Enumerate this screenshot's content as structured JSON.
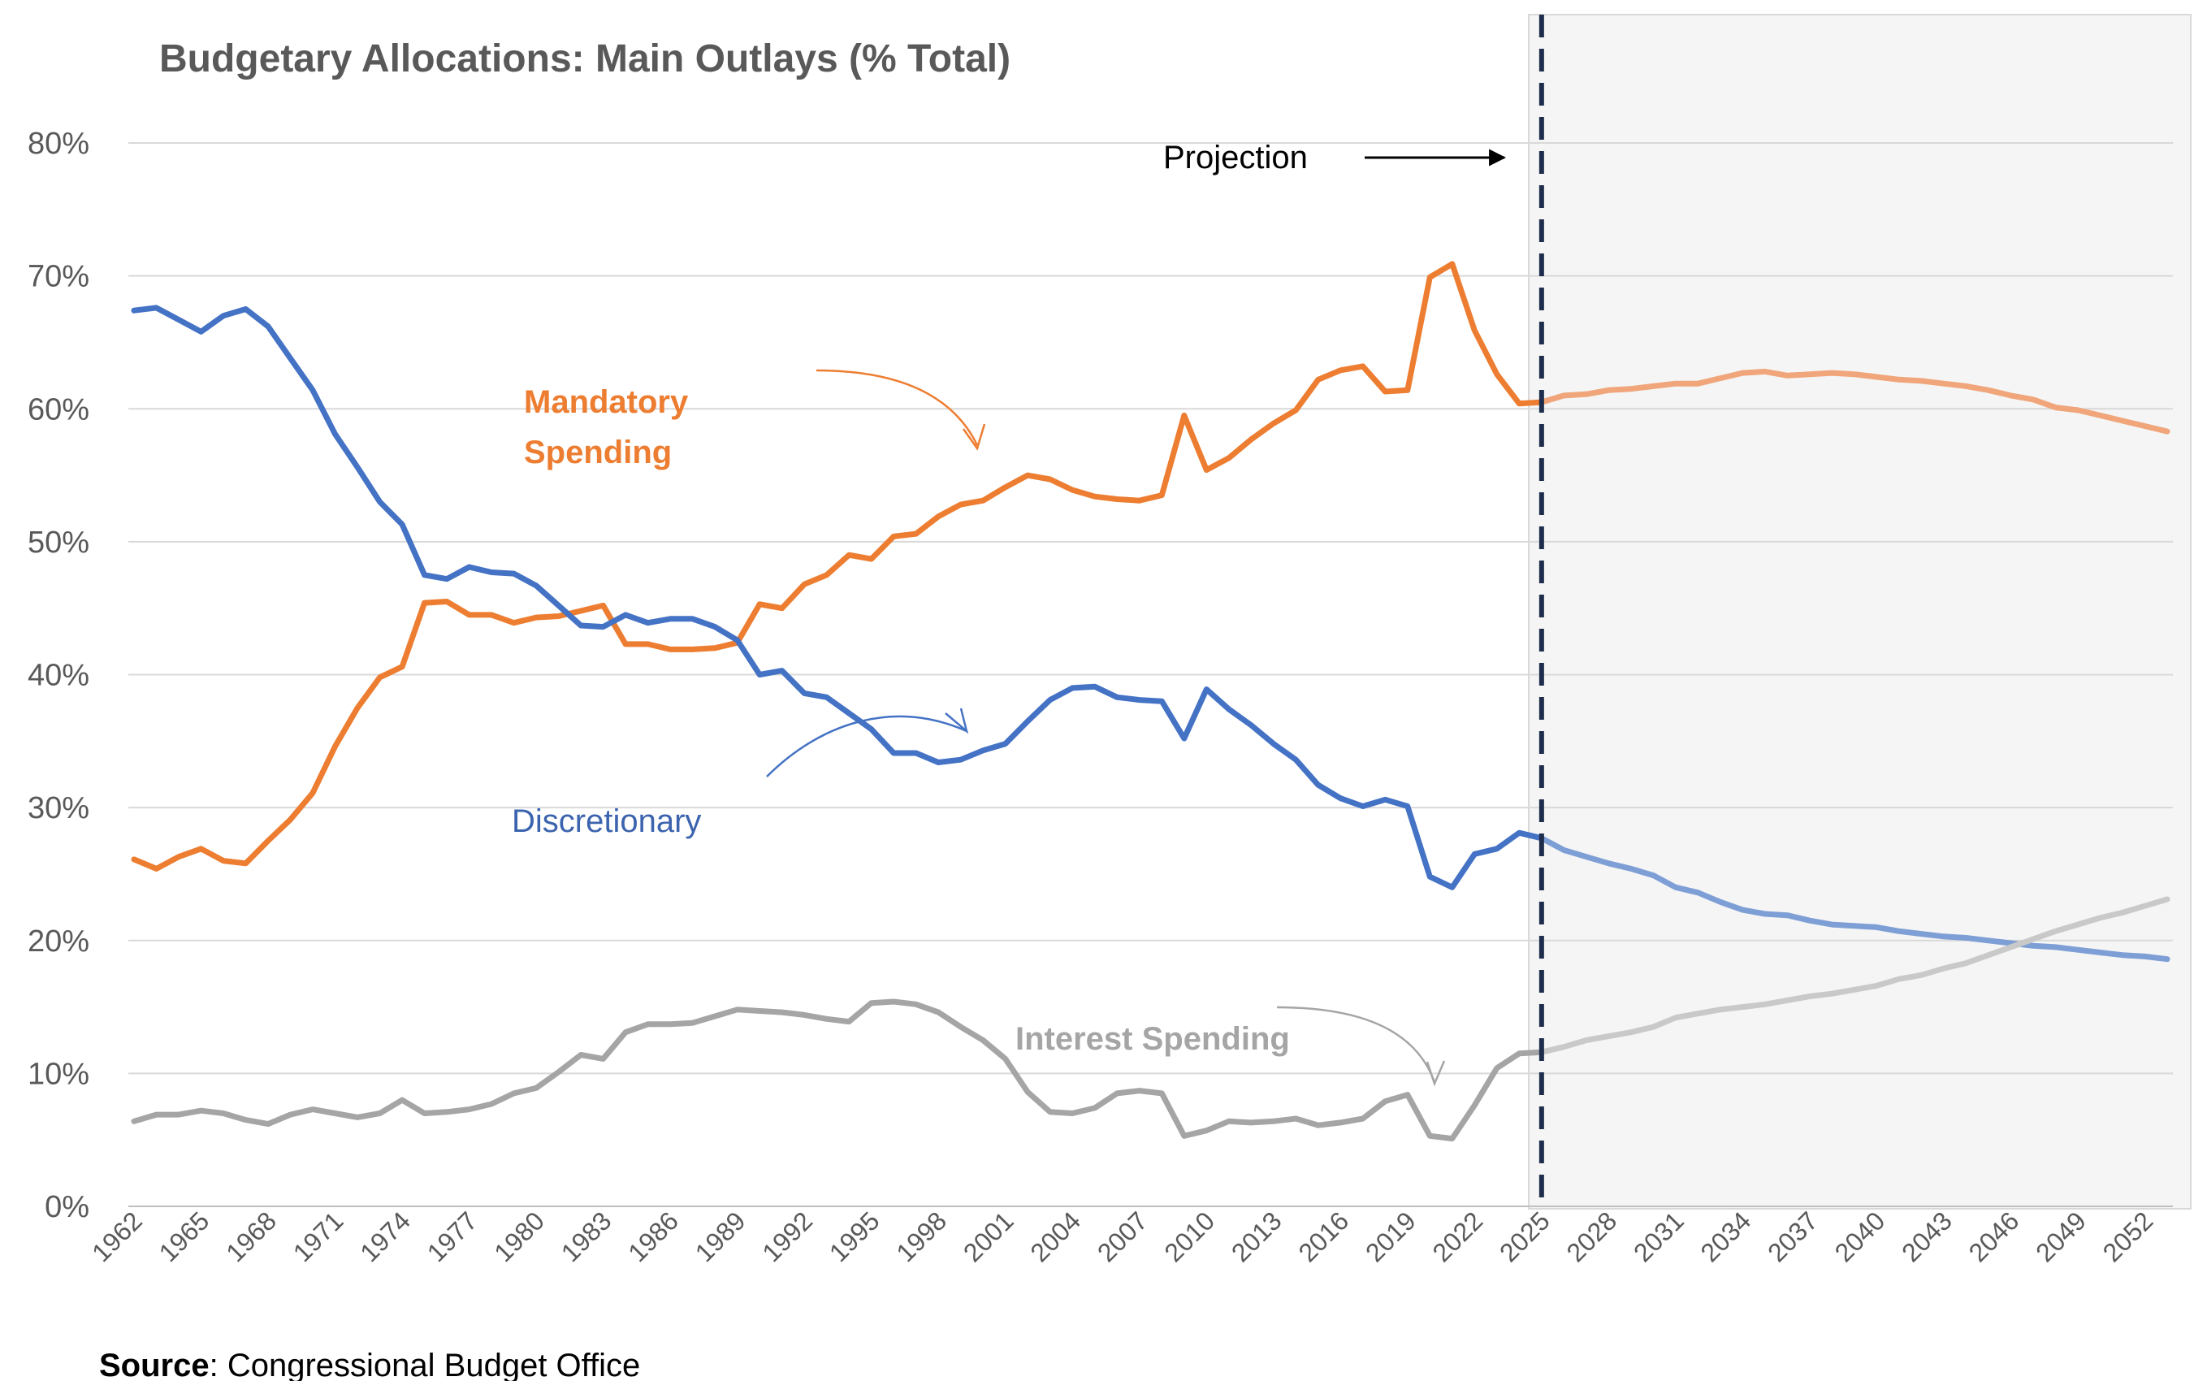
{
  "chart_data": {
    "type": "line",
    "title": "Budgetary Allocations: Main Outlays (% Total)",
    "xlabel": "",
    "ylabel": "",
    "ylim": [
      0,
      80
    ],
    "y_ticks": [
      "0%",
      "10%",
      "20%",
      "30%",
      "40%",
      "50%",
      "60%",
      "70%",
      "80%"
    ],
    "x_range": [
      1962,
      2053
    ],
    "x_tick_years": [
      1962,
      1965,
      1968,
      1971,
      1974,
      1977,
      1980,
      1983,
      1986,
      1989,
      1992,
      1995,
      1998,
      2001,
      2004,
      2007,
      2010,
      2013,
      2016,
      2019,
      2022,
      2025,
      2028,
      2031,
      2034,
      2037,
      2040,
      2043,
      2046,
      2049,
      2052
    ],
    "projection_start": 2025,
    "grid": "horizontal",
    "legend": "none",
    "series": [
      {
        "key": "mandatory",
        "color": "#ED7D31",
        "projection_color": "#F0A67A",
        "points": [
          [
            1962,
            26.1
          ],
          [
            1963,
            25.4
          ],
          [
            1964,
            26.3
          ],
          [
            1965,
            26.9
          ],
          [
            1966,
            26.0
          ],
          [
            1967,
            25.8
          ],
          [
            1968,
            27.5
          ],
          [
            1969,
            29.1
          ],
          [
            1970,
            31.1
          ],
          [
            1971,
            34.6
          ],
          [
            1972,
            37.5
          ],
          [
            1973,
            39.8
          ],
          [
            1974,
            40.6
          ],
          [
            1975,
            45.4
          ],
          [
            1976,
            45.5
          ],
          [
            1977,
            44.5
          ],
          [
            1978,
            44.5
          ],
          [
            1979,
            43.9
          ],
          [
            1980,
            44.3
          ],
          [
            1981,
            44.4
          ],
          [
            1982,
            44.8
          ],
          [
            1983,
            45.2
          ],
          [
            1984,
            42.3
          ],
          [
            1985,
            42.3
          ],
          [
            1986,
            41.9
          ],
          [
            1987,
            41.9
          ],
          [
            1988,
            42.0
          ],
          [
            1989,
            42.4
          ],
          [
            1990,
            45.3
          ],
          [
            1991,
            45.0
          ],
          [
            1992,
            46.8
          ],
          [
            1993,
            47.5
          ],
          [
            1994,
            49.0
          ],
          [
            1995,
            48.7
          ],
          [
            1996,
            50.4
          ],
          [
            1997,
            50.6
          ],
          [
            1998,
            51.9
          ],
          [
            1999,
            52.8
          ],
          [
            2000,
            53.1
          ],
          [
            2001,
            54.1
          ],
          [
            2002,
            55.0
          ],
          [
            2003,
            54.7
          ],
          [
            2004,
            53.9
          ],
          [
            2005,
            53.4
          ],
          [
            2006,
            53.2
          ],
          [
            2007,
            53.1
          ],
          [
            2008,
            53.5
          ],
          [
            2009,
            59.5
          ],
          [
            2010,
            55.4
          ],
          [
            2011,
            56.3
          ],
          [
            2012,
            57.7
          ],
          [
            2013,
            58.9
          ],
          [
            2014,
            59.9
          ],
          [
            2015,
            62.2
          ],
          [
            2016,
            62.9
          ],
          [
            2017,
            63.2
          ],
          [
            2018,
            61.3
          ],
          [
            2019,
            61.4
          ],
          [
            2020,
            69.9
          ],
          [
            2021,
            70.9
          ],
          [
            2022,
            65.9
          ],
          [
            2023,
            62.6
          ],
          [
            2024,
            60.4
          ],
          [
            2025,
            60.5
          ],
          [
            2026,
            61.0
          ],
          [
            2027,
            61.1
          ],
          [
            2028,
            61.4
          ],
          [
            2029,
            61.5
          ],
          [
            2030,
            61.7
          ],
          [
            2031,
            61.9
          ],
          [
            2032,
            61.9
          ],
          [
            2033,
            62.3
          ],
          [
            2034,
            62.7
          ],
          [
            2035,
            62.8
          ],
          [
            2036,
            62.5
          ],
          [
            2037,
            62.6
          ],
          [
            2038,
            62.7
          ],
          [
            2039,
            62.6
          ],
          [
            2040,
            62.4
          ],
          [
            2041,
            62.2
          ],
          [
            2042,
            62.1
          ],
          [
            2043,
            61.9
          ],
          [
            2044,
            61.7
          ],
          [
            2045,
            61.4
          ],
          [
            2046,
            61.0
          ],
          [
            2047,
            60.7
          ],
          [
            2048,
            60.1
          ],
          [
            2049,
            59.9
          ],
          [
            2050,
            59.5
          ],
          [
            2051,
            59.1
          ],
          [
            2052,
            58.7
          ],
          [
            2053,
            58.3
          ]
        ]
      },
      {
        "key": "discretionary",
        "color": "#4472C4",
        "projection_color": "#7E9FD6",
        "points": [
          [
            1962,
            67.4
          ],
          [
            1963,
            67.6
          ],
          [
            1964,
            66.7
          ],
          [
            1965,
            65.8
          ],
          [
            1966,
            67.0
          ],
          [
            1967,
            67.5
          ],
          [
            1968,
            66.2
          ],
          [
            1969,
            63.8
          ],
          [
            1970,
            61.4
          ],
          [
            1971,
            58.1
          ],
          [
            1972,
            55.6
          ],
          [
            1973,
            53.0
          ],
          [
            1974,
            51.3
          ],
          [
            1975,
            47.5
          ],
          [
            1976,
            47.2
          ],
          [
            1977,
            48.1
          ],
          [
            1978,
            47.7
          ],
          [
            1979,
            47.6
          ],
          [
            1980,
            46.7
          ],
          [
            1981,
            45.2
          ],
          [
            1982,
            43.7
          ],
          [
            1983,
            43.6
          ],
          [
            1984,
            44.5
          ],
          [
            1985,
            43.9
          ],
          [
            1986,
            44.2
          ],
          [
            1987,
            44.2
          ],
          [
            1988,
            43.6
          ],
          [
            1989,
            42.6
          ],
          [
            1990,
            40.0
          ],
          [
            1991,
            40.3
          ],
          [
            1992,
            38.6
          ],
          [
            1993,
            38.3
          ],
          [
            1994,
            37.1
          ],
          [
            1995,
            35.9
          ],
          [
            1996,
            34.1
          ],
          [
            1997,
            34.1
          ],
          [
            1998,
            33.4
          ],
          [
            1999,
            33.6
          ],
          [
            2000,
            34.3
          ],
          [
            2001,
            34.8
          ],
          [
            2002,
            36.5
          ],
          [
            2003,
            38.1
          ],
          [
            2004,
            39.0
          ],
          [
            2005,
            39.1
          ],
          [
            2006,
            38.3
          ],
          [
            2007,
            38.1
          ],
          [
            2008,
            38.0
          ],
          [
            2009,
            35.2
          ],
          [
            2010,
            38.9
          ],
          [
            2011,
            37.4
          ],
          [
            2012,
            36.2
          ],
          [
            2013,
            34.8
          ],
          [
            2014,
            33.6
          ],
          [
            2015,
            31.7
          ],
          [
            2016,
            30.7
          ],
          [
            2017,
            30.1
          ],
          [
            2018,
            30.6
          ],
          [
            2019,
            30.1
          ],
          [
            2020,
            24.8
          ],
          [
            2021,
            24.0
          ],
          [
            2022,
            26.5
          ],
          [
            2023,
            26.9
          ],
          [
            2024,
            28.1
          ],
          [
            2025,
            27.7
          ],
          [
            2026,
            26.8
          ],
          [
            2027,
            26.3
          ],
          [
            2028,
            25.8
          ],
          [
            2029,
            25.4
          ],
          [
            2030,
            24.9
          ],
          [
            2031,
            24.0
          ],
          [
            2032,
            23.6
          ],
          [
            2033,
            22.9
          ],
          [
            2034,
            22.3
          ],
          [
            2035,
            22.0
          ],
          [
            2036,
            21.9
          ],
          [
            2037,
            21.5
          ],
          [
            2038,
            21.2
          ],
          [
            2039,
            21.1
          ],
          [
            2040,
            21.0
          ],
          [
            2041,
            20.7
          ],
          [
            2042,
            20.5
          ],
          [
            2043,
            20.3
          ],
          [
            2044,
            20.2
          ],
          [
            2045,
            20.0
          ],
          [
            2046,
            19.8
          ],
          [
            2047,
            19.6
          ],
          [
            2048,
            19.5
          ],
          [
            2049,
            19.3
          ],
          [
            2050,
            19.1
          ],
          [
            2051,
            18.9
          ],
          [
            2052,
            18.8
          ],
          [
            2053,
            18.6
          ]
        ]
      },
      {
        "key": "interest",
        "color": "#A5A5A5",
        "projection_color": "#C9C9C9",
        "points": [
          [
            1962,
            6.4
          ],
          [
            1963,
            6.9
          ],
          [
            1964,
            6.9
          ],
          [
            1965,
            7.2
          ],
          [
            1966,
            7.0
          ],
          [
            1967,
            6.5
          ],
          [
            1968,
            6.2
          ],
          [
            1969,
            6.9
          ],
          [
            1970,
            7.3
          ],
          [
            1971,
            7.0
          ],
          [
            1972,
            6.7
          ],
          [
            1973,
            7.0
          ],
          [
            1974,
            8.0
          ],
          [
            1975,
            7.0
          ],
          [
            1976,
            7.1
          ],
          [
            1977,
            7.3
          ],
          [
            1978,
            7.7
          ],
          [
            1979,
            8.5
          ],
          [
            1980,
            8.9
          ],
          [
            1981,
            10.1
          ],
          [
            1982,
            11.4
          ],
          [
            1983,
            11.1
          ],
          [
            1984,
            13.1
          ],
          [
            1985,
            13.7
          ],
          [
            1986,
            13.7
          ],
          [
            1987,
            13.8
          ],
          [
            1988,
            14.3
          ],
          [
            1989,
            14.8
          ],
          [
            1990,
            14.7
          ],
          [
            1991,
            14.6
          ],
          [
            1992,
            14.4
          ],
          [
            1993,
            14.1
          ],
          [
            1994,
            13.9
          ],
          [
            1995,
            15.3
          ],
          [
            1996,
            15.4
          ],
          [
            1997,
            15.2
          ],
          [
            1998,
            14.6
          ],
          [
            1999,
            13.5
          ],
          [
            2000,
            12.5
          ],
          [
            2001,
            11.1
          ],
          [
            2002,
            8.6
          ],
          [
            2003,
            7.1
          ],
          [
            2004,
            7.0
          ],
          [
            2005,
            7.4
          ],
          [
            2006,
            8.5
          ],
          [
            2007,
            8.7
          ],
          [
            2008,
            8.5
          ],
          [
            2009,
            5.3
          ],
          [
            2010,
            5.7
          ],
          [
            2011,
            6.4
          ],
          [
            2012,
            6.3
          ],
          [
            2013,
            6.4
          ],
          [
            2014,
            6.6
          ],
          [
            2015,
            6.1
          ],
          [
            2016,
            6.3
          ],
          [
            2017,
            6.6
          ],
          [
            2018,
            7.9
          ],
          [
            2019,
            8.4
          ],
          [
            2020,
            5.3
          ],
          [
            2021,
            5.1
          ],
          [
            2022,
            7.6
          ],
          [
            2023,
            10.4
          ],
          [
            2024,
            11.5
          ],
          [
            2025,
            11.6
          ],
          [
            2026,
            12.0
          ],
          [
            2027,
            12.5
          ],
          [
            2028,
            12.8
          ],
          [
            2029,
            13.1
          ],
          [
            2030,
            13.5
          ],
          [
            2031,
            14.2
          ],
          [
            2032,
            14.5
          ],
          [
            2033,
            14.8
          ],
          [
            2034,
            15.0
          ],
          [
            2035,
            15.2
          ],
          [
            2036,
            15.5
          ],
          [
            2037,
            15.8
          ],
          [
            2038,
            16.0
          ],
          [
            2039,
            16.3
          ],
          [
            2040,
            16.6
          ],
          [
            2041,
            17.1
          ],
          [
            2042,
            17.4
          ],
          [
            2043,
            17.9
          ],
          [
            2044,
            18.3
          ],
          [
            2045,
            18.9
          ],
          [
            2046,
            19.5
          ],
          [
            2047,
            20.1
          ],
          [
            2048,
            20.7
          ],
          [
            2049,
            21.2
          ],
          [
            2050,
            21.7
          ],
          [
            2051,
            22.1
          ],
          [
            2052,
            22.6
          ],
          [
            2053,
            23.1
          ]
        ]
      }
    ],
    "annotations": {
      "mandatory_line1": "Mandatory",
      "mandatory_line2": "Spending",
      "discretionary": "Discretionary",
      "interest": "Interest Spending",
      "projection": "Projection"
    }
  },
  "source": {
    "label": "Source",
    "text": ": Congressional Budget Office"
  }
}
